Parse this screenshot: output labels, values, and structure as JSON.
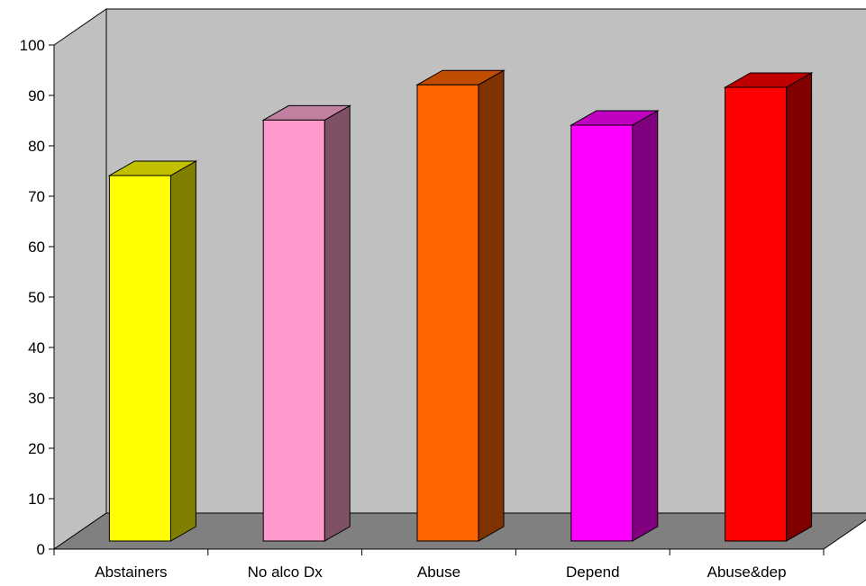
{
  "chart_data": {
    "type": "bar",
    "title": "",
    "xlabel": "",
    "ylabel": "",
    "ylim": [
      0,
      100
    ],
    "yticks": [
      0,
      10,
      20,
      30,
      40,
      50,
      60,
      70,
      80,
      90,
      100
    ],
    "categories": [
      "Abstainers",
      "No alco Dx",
      "Abuse",
      "Depend",
      "Abuse&dep"
    ],
    "values": [
      72.5,
      83.5,
      90.5,
      82.5,
      90
    ],
    "grid": false,
    "legend": "none",
    "three_d": true,
    "colors": {
      "wall": "#c0c0c0",
      "floor": "#808080",
      "bars": [
        {
          "front": "#ffff00",
          "side": "#808000",
          "top": "#c0c000"
        },
        {
          "front": "#ff99cc",
          "side": "#805066",
          "top": "#c080a0"
        },
        {
          "front": "#ff6600",
          "side": "#803300",
          "top": "#c04c00"
        },
        {
          "front": "#ff00ff",
          "side": "#800080",
          "top": "#c000c0"
        },
        {
          "front": "#ff0000",
          "side": "#800000",
          "top": "#c00000"
        }
      ]
    }
  }
}
